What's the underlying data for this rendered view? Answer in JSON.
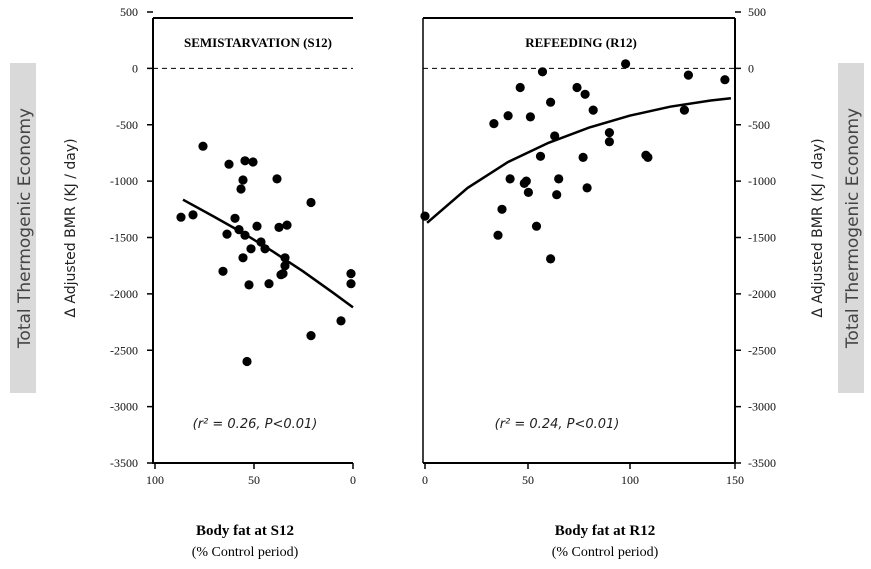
{
  "chart_data": [
    {
      "type": "scatter",
      "title": "SEMISTARVATION (S12)",
      "xlabel": "Body fat at S12",
      "xlabel_sub": "(% Control period)",
      "ylabel": "Δ Adjusted BMR (KJ / day)",
      "side_label": "Total Thermogenic Economy",
      "xlim": [
        100,
        0
      ],
      "ylim": [
        -3500,
        500
      ],
      "x_ticks": [
        "100",
        "50",
        "0"
      ],
      "y_ticks": [
        "500",
        "0",
        "-500",
        "-1000",
        "-1500",
        "-2000",
        "-2500",
        "-3000",
        "-3500"
      ],
      "reference_line_y": 0,
      "stat": "(r² = 0.26, P<0.01)",
      "points": [
        [
          86,
          -1320
        ],
        [
          80,
          -1300
        ],
        [
          75,
          -690
        ],
        [
          65,
          -1800
        ],
        [
          63,
          -1470
        ],
        [
          62,
          -850
        ],
        [
          59,
          -1330
        ],
        [
          57,
          -1430
        ],
        [
          56,
          -1070
        ],
        [
          55,
          -1680
        ],
        [
          55,
          -990
        ],
        [
          54,
          -1480
        ],
        [
          54,
          -820
        ],
        [
          53,
          -2600
        ],
        [
          52,
          -1920
        ],
        [
          51,
          -1600
        ],
        [
          50,
          -830
        ],
        [
          48,
          -1400
        ],
        [
          46,
          -1540
        ],
        [
          44,
          -1600
        ],
        [
          42,
          -1910
        ],
        [
          38,
          -980
        ],
        [
          37,
          -1410
        ],
        [
          36,
          -1830
        ],
        [
          35,
          -1820
        ],
        [
          34,
          -1750
        ],
        [
          34,
          -1680
        ],
        [
          33,
          -1390
        ],
        [
          21,
          -1190
        ],
        [
          21,
          -2370
        ],
        [
          6,
          -2240
        ],
        [
          1,
          -1820
        ],
        [
          1,
          -1910
        ]
      ],
      "fit": [
        [
          85,
          -1165
        ],
        [
          70,
          -1310
        ],
        [
          55,
          -1460
        ],
        [
          40,
          -1625
        ],
        [
          25,
          -1800
        ],
        [
          10,
          -1990
        ],
        [
          0,
          -2120
        ]
      ]
    },
    {
      "type": "scatter",
      "title": "REFEEDING (R12)",
      "xlabel": "Body fat at R12",
      "xlabel_sub": "(% Control period)",
      "ylabel": "Δ Adjusted BMR (KJ / day)",
      "side_label": "Total Thermogenic Economy",
      "xlim": [
        -2,
        152
      ],
      "ylim": [
        -3500,
        500
      ],
      "x_ticks": [
        "0",
        "50",
        "100",
        "150"
      ],
      "y_ticks": [
        "500",
        "0",
        "-500",
        "-1000",
        "-1500",
        "-2000",
        "-2500",
        "-3000",
        "-3500"
      ],
      "reference_line_y": 0,
      "stat": "(r² = 0.24, P<0.01)",
      "points": [
        [
          -1,
          -1310
        ],
        [
          33,
          -490
        ],
        [
          35,
          -1480
        ],
        [
          37,
          -1250
        ],
        [
          40,
          -420
        ],
        [
          41,
          -980
        ],
        [
          46,
          -170
        ],
        [
          48,
          -1020
        ],
        [
          49,
          -1000
        ],
        [
          50,
          -1100
        ],
        [
          51,
          -430
        ],
        [
          54,
          -1400
        ],
        [
          56,
          -780
        ],
        [
          57,
          -30
        ],
        [
          61,
          -300
        ],
        [
          61,
          -1690
        ],
        [
          63,
          -600
        ],
        [
          64,
          -1120
        ],
        [
          65,
          -980
        ],
        [
          74,
          -170
        ],
        [
          77,
          -790
        ],
        [
          78,
          -230
        ],
        [
          79,
          -1060
        ],
        [
          82,
          -370
        ],
        [
          90,
          -570
        ],
        [
          90,
          -650
        ],
        [
          98,
          40
        ],
        [
          108,
          -770
        ],
        [
          109,
          -790
        ],
        [
          127,
          -370
        ],
        [
          129,
          -60
        ],
        [
          147,
          -100
        ]
      ],
      "fit": [
        [
          0,
          -1370
        ],
        [
          20,
          -1060
        ],
        [
          40,
          -830
        ],
        [
          60,
          -660
        ],
        [
          80,
          -525
        ],
        [
          100,
          -420
        ],
        [
          120,
          -340
        ],
        [
          140,
          -285
        ],
        [
          150,
          -265
        ]
      ]
    }
  ]
}
